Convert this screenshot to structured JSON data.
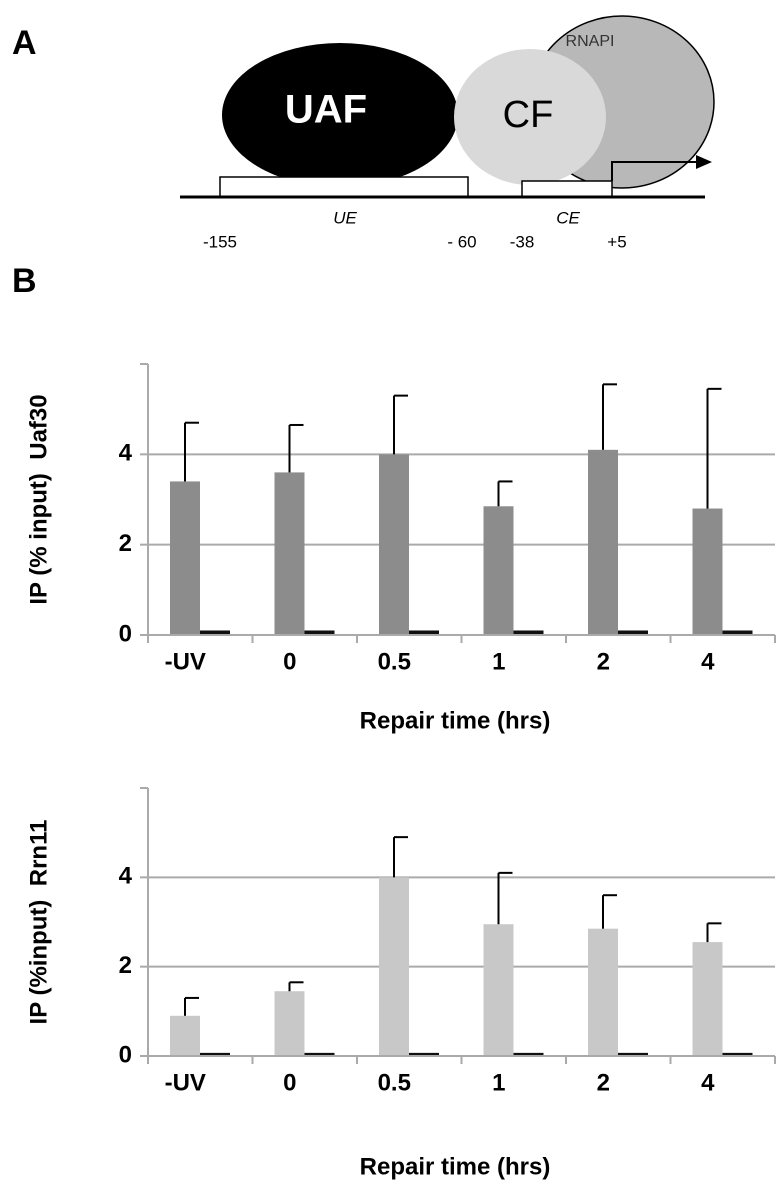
{
  "panel_labels": [
    "A",
    "B"
  ],
  "diagram": {
    "uaf": "UAF",
    "cf": "CF",
    "rnapi": "RNAPI",
    "ue": "UE",
    "ce": "CE",
    "positions": [
      "-155",
      "- 60",
      "-38",
      "+5"
    ]
  },
  "chart_data": [
    {
      "type": "bar",
      "ylabel": "IP (% input)  Uaf30",
      "xlabel": "Repair time (hrs)",
      "categories": [
        "-UV",
        "0",
        "0.5",
        "1",
        "2",
        "4"
      ],
      "series": [
        {
          "color": "#8c8c8c",
          "values": [
            3.4,
            3.6,
            4.0,
            2.85,
            4.1,
            2.8
          ],
          "errors": [
            1.3,
            1.05,
            1.3,
            0.55,
            1.45,
            2.65
          ]
        },
        {
          "color": "#111111",
          "values": [
            0.1,
            0.1,
            0.1,
            0.1,
            0.1,
            0.1
          ]
        }
      ],
      "ylim": [
        0,
        6
      ],
      "yticks": [
        0,
        2,
        4
      ],
      "grid": true
    },
    {
      "type": "bar",
      "ylabel": "IP (%input)  Rrn11",
      "xlabel": "Repair time (hrs)",
      "categories": [
        "-UV",
        "0",
        "0.5",
        "1",
        "2",
        "4"
      ],
      "series": [
        {
          "color": "#c8c8c8",
          "values": [
            0.9,
            1.45,
            4.0,
            2.95,
            2.85,
            2.55
          ],
          "errors": [
            0.4,
            0.2,
            0.9,
            1.15,
            0.75,
            0.42
          ]
        },
        {
          "color": "#111111",
          "values": [
            0.07,
            0.07,
            0.07,
            0.07,
            0.07,
            0.07
          ]
        }
      ],
      "ylim": [
        0,
        6
      ],
      "yticks": [
        0,
        2,
        4
      ],
      "grid": true
    }
  ]
}
